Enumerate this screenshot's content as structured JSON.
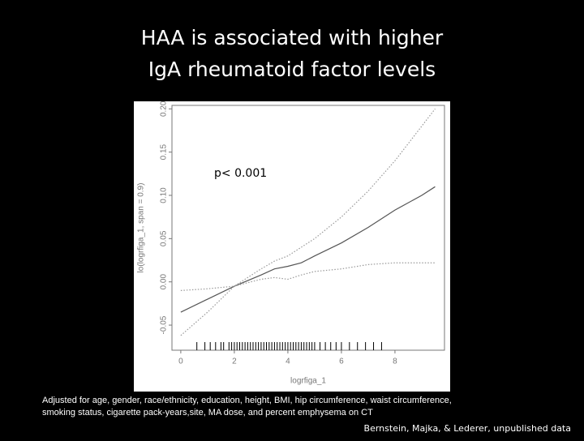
{
  "chart_data": {
    "type": "line",
    "title_lines": [
      "HAA is associated with higher",
      "IgA rheumatoid factor levels"
    ],
    "annotation": "p< 0.001",
    "xlabel": "logrfiga_1",
    "ylabel": "lo(logrfiga_1, span = 0.9)",
    "footnote_lines": [
      "Adjusted for age, gender, race/ethnicity, education, height, BMI, hip circumference, waist circumference,",
      "smoking status, cigarette pack-years,site, MA dose, and percent emphysema on CT"
    ],
    "citation": "Bernstein, Majka, & Lederer, unpublished data",
    "x": [
      0,
      1,
      2,
      3,
      3.5,
      4,
      4.5,
      5,
      6,
      7,
      8,
      9,
      9.5
    ],
    "series": [
      {
        "color": "#555555",
        "dash": false,
        "values": [
          -0.035,
          -0.02,
          -0.005,
          0.008,
          0.015,
          0.018,
          0.022,
          0.03,
          0.045,
          0.063,
          0.083,
          0.1,
          0.11
        ]
      },
      {
        "color": "#999999",
        "dash": true,
        "values": [
          -0.062,
          -0.035,
          -0.005,
          0.015,
          0.024,
          0.03,
          0.04,
          0.05,
          0.075,
          0.105,
          0.14,
          0.18,
          0.2
        ]
      },
      {
        "color": "#999999",
        "dash": true,
        "values": [
          -0.01,
          -0.008,
          -0.005,
          0.003,
          0.005,
          0.003,
          0.008,
          0.012,
          0.015,
          0.02,
          0.022,
          0.022,
          0.022
        ]
      }
    ],
    "rug": [
      0.6,
      0.9,
      1.1,
      1.3,
      1.5,
      1.6,
      1.8,
      1.9,
      2.0,
      2.1,
      2.2,
      2.3,
      2.4,
      2.5,
      2.6,
      2.7,
      2.8,
      2.9,
      3.0,
      3.1,
      3.2,
      3.3,
      3.4,
      3.5,
      3.6,
      3.7,
      3.8,
      3.9,
      4.0,
      4.1,
      4.2,
      4.3,
      4.4,
      4.5,
      4.6,
      4.7,
      4.8,
      4.9,
      5.0,
      5.2,
      5.4,
      5.6,
      5.8,
      6.0,
      6.3,
      6.6,
      6.9,
      7.2,
      7.5
    ],
    "xlim": [
      -0.33,
      9.85
    ],
    "xticks": [
      0,
      2,
      4,
      6,
      8
    ],
    "ylim": [
      -0.079,
      0.204
    ],
    "yticks": [
      -0.05,
      {
        "value": 0,
        "label": "0.00"
      },
      0.05,
      {
        "value": 0.1,
        "label": "0.10"
      },
      0.15,
      {
        "value": 0.2,
        "label": "0.20"
      }
    ]
  }
}
